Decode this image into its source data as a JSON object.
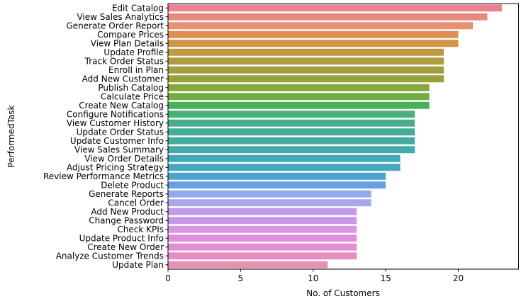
{
  "chart_data": {
    "type": "bar",
    "orientation": "horizontal",
    "xlabel": "No. of Customers",
    "ylabel": "PerformedTask",
    "xlim": [
      0,
      24.15
    ],
    "xticks": [
      "0",
      "5",
      "10",
      "15",
      "20"
    ],
    "grid": false,
    "legend": "none",
    "categories": [
      "Edit Catalog",
      "View Sales Analytics",
      "Generate Order Report",
      "Compare Prices",
      "View Plan Details",
      "Update Profile",
      "Track Order Status",
      "Enroll in Plan",
      "Add New Customer",
      "Publish Catalog",
      "Calculate Price",
      "Create New Catalog",
      "Configure Notifications",
      "View Customer History",
      "Update Order Status",
      "Update Customer Info",
      "View Sales Summary",
      "View Order Details",
      "Adjust Pricing Strategy",
      "Review Performance Metrics",
      "Delete Product",
      "Generate Reports",
      "Cancel Order",
      "Add New Product",
      "Change Password",
      "Check KPIs",
      "Update Product Info",
      "Create New Order",
      "Analyze Customer Trends",
      "Update Plan"
    ],
    "values": [
      23,
      22,
      21,
      20,
      20,
      19,
      19,
      19,
      19,
      18,
      18,
      18,
      17,
      17,
      17,
      17,
      17,
      16,
      16,
      15,
      15,
      14,
      14,
      13,
      13,
      13,
      13,
      13,
      13,
      11
    ],
    "colors": [
      "#e8838f",
      "#e68a7d",
      "#e59172",
      "#dd9050",
      "#d59443",
      "#bc9a45",
      "#ae9d3e",
      "#a49d3e",
      "#97a23e",
      "#88a53e",
      "#6fae42",
      "#4bb05a",
      "#48b07a",
      "#46ae8c",
      "#44ac93",
      "#44aba0",
      "#45aaaa",
      "#45a8b6",
      "#45a7c1",
      "#4ca3cf",
      "#64a0e2",
      "#96a8ec",
      "#aba7ee",
      "#c29aea",
      "#c898e8",
      "#d895e6",
      "#de8fdd",
      "#e18ed5",
      "#e68dc3",
      "#e88fb4"
    ]
  }
}
